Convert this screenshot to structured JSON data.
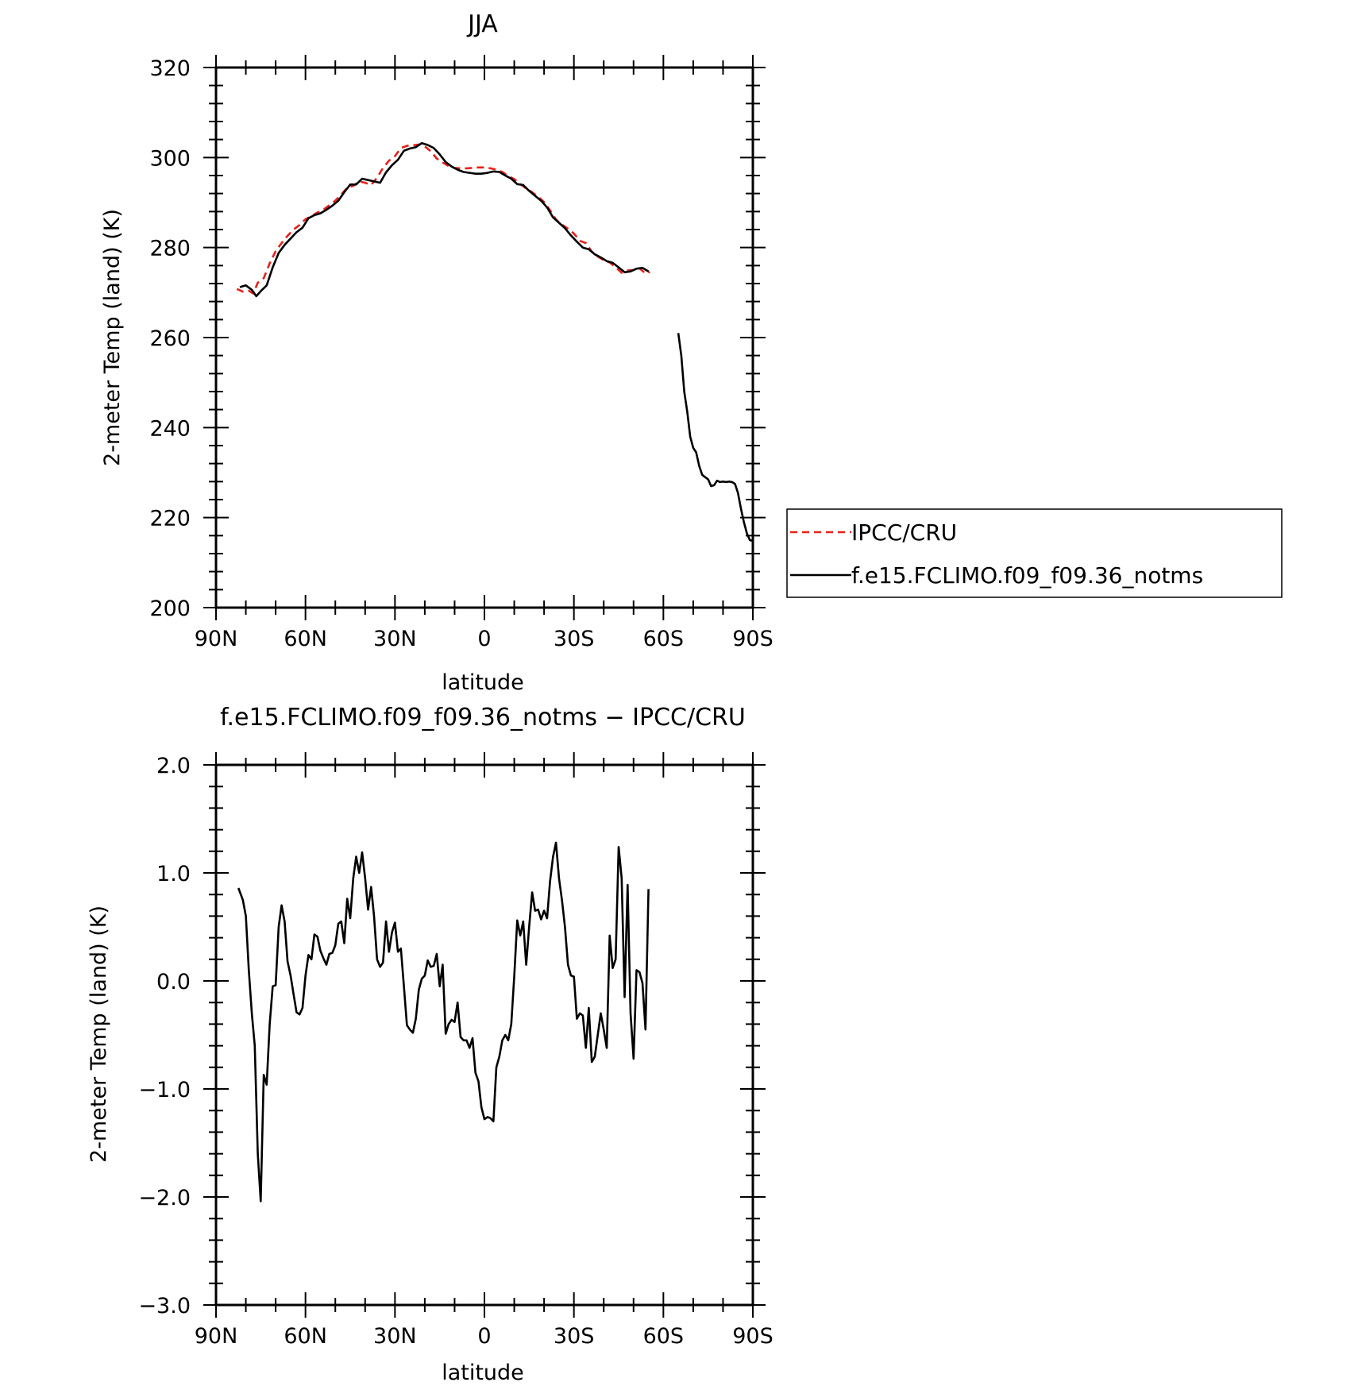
{
  "chart_data": [
    {
      "type": "line",
      "title": "JJA",
      "xlabel": "latitude",
      "ylabel": "2-meter Temp (land) (K)",
      "xlim": [
        90,
        -90
      ],
      "ylim": [
        200,
        320
      ],
      "yticks": [
        200,
        220,
        240,
        260,
        280,
        300,
        320
      ],
      "ytick_labels": [
        "200",
        "220",
        "240",
        "260",
        "280",
        "300",
        "320"
      ],
      "xticks": [
        90,
        60,
        30,
        0,
        -30,
        -60,
        -90
      ],
      "xtick_labels": [
        "90N",
        "60N",
        "30N",
        "0",
        "30S",
        "60S",
        "90S"
      ],
      "grid": false,
      "legend_position": "right",
      "series": [
        {
          "name": "IPCC/CRU",
          "color": "#e8201a",
          "style": "dashed",
          "x": [
            83,
            81,
            79,
            77.5,
            76,
            74,
            72,
            70,
            68,
            66,
            64,
            62,
            60,
            58,
            56,
            54,
            52,
            50,
            48,
            46,
            44,
            42,
            40,
            38,
            36,
            34,
            32,
            30,
            28,
            26,
            24,
            22,
            20,
            18,
            16,
            14,
            12,
            10,
            8,
            6,
            4,
            2,
            0,
            -2,
            -4,
            -6,
            -8,
            -10,
            -12,
            -14,
            -16,
            -18,
            -20,
            -22,
            -24,
            -26,
            -28,
            -30,
            -32,
            -34,
            -36,
            -38,
            -40,
            -42,
            -44,
            -46,
            -48,
            -50,
            -52,
            -54,
            -55.5
          ],
          "values": [
            270.8,
            270.2,
            270.4,
            269.8,
            272.2,
            273.2,
            276.5,
            279.2,
            281.0,
            282.6,
            284.0,
            285.0,
            286.3,
            287.0,
            287.8,
            288.4,
            289.4,
            290.4,
            291.8,
            293.3,
            293.7,
            294.7,
            294.4,
            293.9,
            295.5,
            297.7,
            299.3,
            300.3,
            302.1,
            302.6,
            302.7,
            302.9,
            302.5,
            301.4,
            299.8,
            298.9,
            298.1,
            297.7,
            297.6,
            297.6,
            297.7,
            297.8,
            297.8,
            297.6,
            297.3,
            296.8,
            295.9,
            295.2,
            294.1,
            293.1,
            292.3,
            291.3,
            290.1,
            288.3,
            286.2,
            285.1,
            284.2,
            283.1,
            281.5,
            281.0,
            279.1,
            278.0,
            277.2,
            276.7,
            275.6,
            274.4,
            274.9,
            275.0,
            275.4,
            274.2,
            274.6
          ]
        },
        {
          "name": "f.e15.FCLIMO.f09_f09.36_notms",
          "color": "#000000",
          "style": "solid",
          "x": [
            82,
            80,
            78,
            76.5,
            75,
            73,
            71,
            69,
            67,
            65,
            63,
            61,
            59,
            57,
            55,
            53,
            51,
            49,
            47,
            45,
            43,
            41,
            39,
            37,
            35,
            33,
            31,
            29,
            27,
            25,
            23,
            21,
            19,
            17,
            15,
            13,
            11,
            9,
            7,
            5,
            3,
            1,
            -1,
            -3,
            -5,
            -7,
            -9,
            -11,
            -13,
            -15,
            -17,
            -19,
            -21,
            -23,
            -25,
            -27,
            -29,
            -31,
            -33,
            -35,
            -37,
            -39,
            -41,
            -43,
            -45,
            -47,
            -49,
            -51,
            -53,
            -55
          ],
          "values": [
            271.2,
            271.6,
            270.6,
            269.2,
            270.3,
            271.6,
            275.6,
            278.8,
            280.6,
            282.0,
            283.4,
            284.4,
            286.5,
            287.2,
            287.6,
            288.4,
            289.3,
            290.4,
            292.3,
            294.0,
            294.0,
            295.3,
            295.0,
            294.7,
            294.4,
            296.7,
            298.3,
            299.5,
            301.5,
            302.0,
            302.3,
            303.2,
            302.8,
            302.1,
            300.7,
            299.0,
            298.0,
            297.3,
            296.8,
            296.6,
            296.4,
            296.4,
            296.6,
            296.9,
            296.8,
            296.0,
            295.3,
            294.1,
            293.9,
            292.6,
            291.5,
            290.4,
            288.9,
            286.7,
            285.5,
            284.3,
            282.7,
            281.3,
            280.0,
            279.6,
            278.5,
            277.8,
            277.0,
            276.6,
            275.6,
            274.5,
            274.7,
            275.3,
            275.5,
            274.7
          ]
        },
        {
          "name": "",
          "legend_hidden": true,
          "color": "#000000",
          "style": "solid",
          "x": [
            -65,
            -66,
            -67,
            -68,
            -69,
            -70,
            -71,
            -72,
            -73,
            -74,
            -75,
            -76,
            -77,
            -78,
            -79,
            -80,
            -81,
            -82,
            -83,
            -84,
            -85,
            -86,
            -87,
            -88,
            -89,
            -90
          ],
          "values": [
            261.0,
            256.0,
            248.0,
            243.5,
            238.0,
            235.5,
            234.5,
            231.5,
            229.5,
            229.0,
            228.5,
            227.0,
            227.2,
            228.2,
            227.9,
            228.0,
            227.9,
            228.0,
            227.9,
            227.5,
            225.5,
            222.0,
            219.0,
            216.5,
            215.0,
            214.8
          ]
        }
      ],
      "legend": {
        "entries": [
          "IPCC/CRU",
          "f.e15.FCLIMO.f09_f09.36_notms"
        ]
      }
    },
    {
      "type": "line",
      "title": "f.e15.FCLIMO.f09_f09.36_notms − IPCC/CRU",
      "xlabel": "latitude",
      "ylabel": "2-meter Temp (land) (K)",
      "xlim": [
        90,
        -90
      ],
      "ylim": [
        -3.0,
        2.0
      ],
      "yticks": [
        -3,
        -2,
        -1,
        0,
        1,
        2
      ],
      "ytick_labels": [
        "−3.0",
        "−2.0",
        "−1.0",
        "0.0",
        "1.0",
        "2.0"
      ],
      "xticks": [
        90,
        60,
        30,
        0,
        -30,
        -60,
        -90
      ],
      "xtick_labels": [
        "90N",
        "60N",
        "30N",
        "0",
        "30S",
        "60S",
        "90S"
      ],
      "grid": false,
      "series": [
        {
          "name": "",
          "color": "#000000",
          "style": "solid",
          "x": [
            82.5,
            81,
            80,
            79,
            78,
            77,
            76,
            75,
            74,
            73,
            72,
            71,
            70,
            69,
            68,
            67,
            66,
            65,
            64,
            63,
            62,
            61,
            60,
            59,
            58,
            57,
            56,
            55,
            54,
            53,
            52,
            51,
            50,
            49,
            48,
            47,
            46,
            45,
            44,
            43,
            42,
            41,
            40,
            39,
            38,
            37,
            36,
            35,
            34,
            33,
            32,
            31,
            30,
            29,
            28,
            27,
            26,
            25,
            24,
            23,
            22,
            21,
            20,
            19,
            18,
            17,
            16,
            15,
            14,
            13,
            12,
            11,
            10,
            9,
            8,
            7,
            6,
            5,
            4,
            3,
            2,
            1,
            0,
            -1,
            -2,
            -3,
            -4,
            -5,
            -6,
            -7,
            -8,
            -9,
            -10,
            -11,
            -12,
            -13,
            -14,
            -15,
            -16,
            -17,
            -18,
            -19,
            -20,
            -21,
            -22,
            -23,
            -24,
            -25,
            -26,
            -27,
            -28,
            -29,
            -30,
            -31,
            -32,
            -33,
            -34,
            -35,
            -36,
            -37,
            -38,
            -39,
            -40,
            -41,
            -42,
            -43,
            -44,
            -45,
            -46,
            -47,
            -48,
            -49,
            -50,
            -51,
            -52,
            -53,
            -54,
            -55
          ],
          "values": [
            0.86,
            0.75,
            0.6,
            0.1,
            -0.3,
            -0.6,
            -1.6,
            -2.04,
            -0.87,
            -0.96,
            -0.4,
            -0.05,
            -0.04,
            0.5,
            0.7,
            0.55,
            0.18,
            0.05,
            -0.12,
            -0.29,
            -0.31,
            -0.25,
            0.05,
            0.24,
            0.2,
            0.43,
            0.41,
            0.28,
            0.21,
            0.15,
            0.25,
            0.26,
            0.33,
            0.53,
            0.55,
            0.35,
            0.76,
            0.58,
            0.95,
            1.15,
            1.0,
            1.19,
            0.95,
            0.66,
            0.87,
            0.6,
            0.2,
            0.13,
            0.17,
            0.55,
            0.27,
            0.45,
            0.54,
            0.27,
            0.3,
            -0.05,
            -0.41,
            -0.45,
            -0.48,
            -0.35,
            -0.08,
            0.02,
            0.05,
            0.19,
            0.13,
            0.14,
            0.25,
            -0.05,
            0.15,
            -0.49,
            -0.4,
            -0.36,
            -0.38,
            -0.2,
            -0.52,
            -0.55,
            -0.55,
            -0.62,
            -0.53,
            -0.85,
            -0.93,
            -1.17,
            -1.28,
            -1.26,
            -1.27,
            -1.3,
            -0.8,
            -0.7,
            -0.55,
            -0.5,
            -0.55,
            -0.4,
            0.05,
            0.56,
            0.42,
            0.55,
            0.15,
            0.5,
            0.82,
            0.65,
            0.66,
            0.57,
            0.65,
            0.58,
            0.92,
            1.15,
            1.28,
            0.95,
            0.75,
            0.5,
            0.15,
            0.05,
            0.04,
            -0.35,
            -0.3,
            -0.32,
            -0.62,
            -0.25,
            -0.75,
            -0.7,
            -0.5,
            -0.3,
            -0.45,
            -0.62,
            0.42,
            0.12,
            0.2,
            1.24,
            0.95,
            -0.15,
            0.89,
            -0.3,
            -0.72,
            0.1,
            0.08,
            -0.02,
            -0.45,
            0.85
          ]
        }
      ]
    }
  ]
}
